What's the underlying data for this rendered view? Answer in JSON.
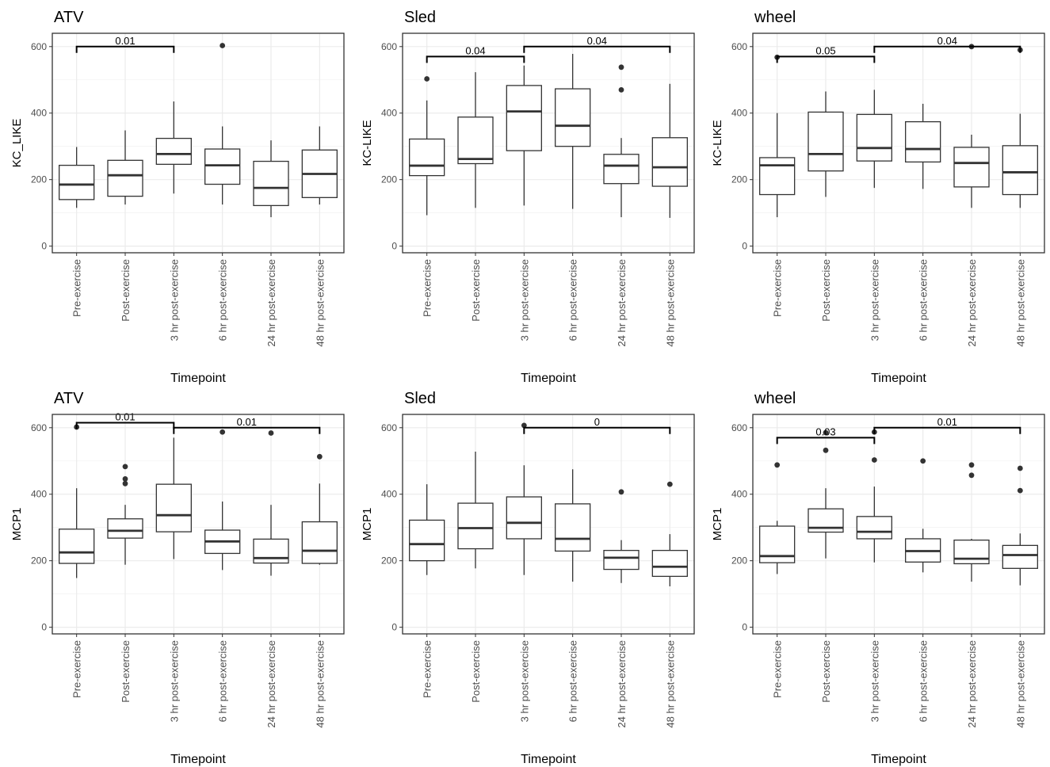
{
  "chart_data": [
    {
      "type": "boxplot",
      "title": "ATV",
      "ylabel": "KC_LIKE",
      "xlabel": "Timepoint",
      "ylim": [
        -20,
        640
      ],
      "yticks": [
        0,
        200,
        400,
        600
      ],
      "categories": [
        "Pre-exercise",
        "Post-exercise",
        "3 hr post-exercise",
        "6 hr post-exercise",
        "24 hr post-exercise",
        "48 hr post-exercise"
      ],
      "boxes": [
        {
          "min": 115,
          "q1": 140,
          "median": 185,
          "q3": 243,
          "max": 298,
          "outliers": []
        },
        {
          "min": 125,
          "q1": 150,
          "median": 213,
          "q3": 258,
          "max": 348,
          "outliers": []
        },
        {
          "min": 158,
          "q1": 246,
          "median": 277,
          "q3": 324,
          "max": 435,
          "outliers": []
        },
        {
          "min": 125,
          "q1": 186,
          "median": 243,
          "q3": 292,
          "max": 360,
          "outliers": [
            603
          ]
        },
        {
          "min": 87,
          "q1": 122,
          "median": 175,
          "q3": 255,
          "max": 318,
          "outliers": []
        },
        {
          "min": 125,
          "q1": 146,
          "median": 217,
          "q3": 289,
          "max": 360,
          "outliers": []
        }
      ],
      "comparisons": [
        {
          "from": 0,
          "to": 2,
          "y": 600,
          "label": "0.01"
        }
      ]
    },
    {
      "type": "boxplot",
      "title": "Sled",
      "ylabel": "KC-LIKE",
      "xlabel": "Timepoint",
      "ylim": [
        -20,
        640
      ],
      "yticks": [
        0,
        200,
        400,
        600
      ],
      "categories": [
        "Pre-exercise",
        "Post-exercise",
        "3 hr post-exercise",
        "6 hr post-exercise",
        "24 hr post-exercise",
        "48 hr post-exercise"
      ],
      "boxes": [
        {
          "min": 93,
          "q1": 212,
          "median": 242,
          "q3": 322,
          "max": 438,
          "outliers": [
            503
          ]
        },
        {
          "min": 115,
          "q1": 248,
          "median": 262,
          "q3": 388,
          "max": 523,
          "outliers": []
        },
        {
          "min": 122,
          "q1": 287,
          "median": 405,
          "q3": 483,
          "max": 543,
          "outliers": []
        },
        {
          "min": 112,
          "q1": 300,
          "median": 362,
          "q3": 473,
          "max": 578,
          "outliers": []
        },
        {
          "min": 87,
          "q1": 188,
          "median": 242,
          "q3": 276,
          "max": 325,
          "outliers": [
            470,
            538
          ]
        },
        {
          "min": 85,
          "q1": 180,
          "median": 237,
          "q3": 326,
          "max": 488,
          "outliers": []
        }
      ],
      "comparisons": [
        {
          "from": 0,
          "to": 2,
          "y": 570,
          "label": "0.04"
        },
        {
          "from": 2,
          "to": 5,
          "y": 600,
          "label": "0.04"
        }
      ]
    },
    {
      "type": "boxplot",
      "title": "wheel",
      "ylabel": "KC-LIKE",
      "xlabel": "Timepoint",
      "ylim": [
        -20,
        640
      ],
      "yticks": [
        0,
        200,
        400,
        600
      ],
      "categories": [
        "Pre-exercise",
        "Post-exercise",
        "3 hr post-exercise",
        "6 hr post-exercise",
        "24 hr post-exercise",
        "48 hr post-exercise"
      ],
      "boxes": [
        {
          "min": 87,
          "q1": 155,
          "median": 243,
          "q3": 266,
          "max": 400,
          "outliers": [
            568
          ]
        },
        {
          "min": 148,
          "q1": 226,
          "median": 277,
          "q3": 403,
          "max": 465,
          "outliers": []
        },
        {
          "min": 175,
          "q1": 256,
          "median": 295,
          "q3": 396,
          "max": 470,
          "outliers": []
        },
        {
          "min": 172,
          "q1": 253,
          "median": 292,
          "q3": 374,
          "max": 428,
          "outliers": []
        },
        {
          "min": 115,
          "q1": 178,
          "median": 250,
          "q3": 297,
          "max": 335,
          "outliers": [
            600
          ]
        },
        {
          "min": 115,
          "q1": 155,
          "median": 222,
          "q3": 302,
          "max": 398,
          "outliers": [
            590
          ]
        }
      ],
      "comparisons": [
        {
          "from": 0,
          "to": 2,
          "y": 570,
          "label": "0.05"
        },
        {
          "from": 2,
          "to": 5,
          "y": 600,
          "label": "0.04"
        }
      ]
    },
    {
      "type": "boxplot",
      "title": "ATV",
      "ylabel": "MCP1",
      "xlabel": "Timepoint",
      "ylim": [
        -20,
        640
      ],
      "yticks": [
        0,
        200,
        400,
        600
      ],
      "categories": [
        "Pre-exercise",
        "Post-exercise",
        "3 hr post-exercise",
        "6 hr post-exercise",
        "24 hr post-exercise",
        "48 hr post-exercise"
      ],
      "boxes": [
        {
          "min": 148,
          "q1": 192,
          "median": 225,
          "q3": 295,
          "max": 418,
          "outliers": [
            602
          ]
        },
        {
          "min": 188,
          "q1": 268,
          "median": 290,
          "q3": 326,
          "max": 368,
          "outliers": [
            432,
            446,
            483
          ]
        },
        {
          "min": 205,
          "q1": 287,
          "median": 337,
          "q3": 430,
          "max": 570,
          "outliers": []
        },
        {
          "min": 172,
          "q1": 222,
          "median": 258,
          "q3": 292,
          "max": 378,
          "outliers": [
            587
          ]
        },
        {
          "min": 155,
          "q1": 193,
          "median": 208,
          "q3": 265,
          "max": 368,
          "outliers": [
            584
          ]
        },
        {
          "min": 188,
          "q1": 192,
          "median": 230,
          "q3": 317,
          "max": 432,
          "outliers": [
            513
          ]
        }
      ],
      "comparisons": [
        {
          "from": 0,
          "to": 2,
          "y": 615,
          "label": "0.01"
        },
        {
          "from": 2,
          "to": 5,
          "y": 600,
          "label": "0.01"
        }
      ]
    },
    {
      "type": "boxplot",
      "title": "Sled",
      "ylabel": "MCP1",
      "xlabel": "Timepoint",
      "ylim": [
        -20,
        640
      ],
      "yticks": [
        0,
        200,
        400,
        600
      ],
      "categories": [
        "Pre-exercise",
        "Post-exercise",
        "3 hr post-exercise",
        "6 hr post-exercise",
        "24 hr post-exercise",
        "48 hr post-exercise"
      ],
      "boxes": [
        {
          "min": 157,
          "q1": 200,
          "median": 250,
          "q3": 322,
          "max": 430,
          "outliers": []
        },
        {
          "min": 177,
          "q1": 236,
          "median": 298,
          "q3": 373,
          "max": 528,
          "outliers": []
        },
        {
          "min": 157,
          "q1": 266,
          "median": 314,
          "q3": 392,
          "max": 487,
          "outliers": [
            607
          ]
        },
        {
          "min": 137,
          "q1": 229,
          "median": 266,
          "q3": 371,
          "max": 475,
          "outliers": []
        },
        {
          "min": 133,
          "q1": 174,
          "median": 209,
          "q3": 231,
          "max": 262,
          "outliers": [
            407
          ]
        },
        {
          "min": 123,
          "q1": 153,
          "median": 182,
          "q3": 231,
          "max": 280,
          "outliers": [
            430
          ]
        }
      ],
      "comparisons": [
        {
          "from": 2,
          "to": 5,
          "y": 600,
          "label": "0"
        }
      ]
    },
    {
      "type": "boxplot",
      "title": "wheel",
      "ylabel": "MCP1",
      "xlabel": "Timepoint",
      "ylim": [
        -20,
        640
      ],
      "yticks": [
        0,
        200,
        400,
        600
      ],
      "categories": [
        "Pre-exercise",
        "Post-exercise",
        "3 hr post-exercise",
        "6 hr post-exercise",
        "24 hr post-exercise",
        "48 hr post-exercise"
      ],
      "boxes": [
        {
          "min": 160,
          "q1": 194,
          "median": 214,
          "q3": 304,
          "max": 320,
          "outliers": [
            488
          ]
        },
        {
          "min": 207,
          "q1": 286,
          "median": 299,
          "q3": 356,
          "max": 418,
          "outliers": [
            532,
            585
          ]
        },
        {
          "min": 195,
          "q1": 266,
          "median": 287,
          "q3": 333,
          "max": 423,
          "outliers": [
            503,
            587
          ]
        },
        {
          "min": 165,
          "q1": 196,
          "median": 229,
          "q3": 266,
          "max": 296,
          "outliers": [
            500
          ]
        },
        {
          "min": 137,
          "q1": 191,
          "median": 206,
          "q3": 262,
          "max": 266,
          "outliers": [
            457,
            488
          ]
        },
        {
          "min": 126,
          "q1": 177,
          "median": 217,
          "q3": 246,
          "max": 282,
          "outliers": [
            411,
            478
          ]
        }
      ],
      "comparisons": [
        {
          "from": 0,
          "to": 2,
          "y": 570,
          "label": "0.03"
        },
        {
          "from": 2,
          "to": 5,
          "y": 600,
          "label": "0.01"
        }
      ]
    }
  ]
}
